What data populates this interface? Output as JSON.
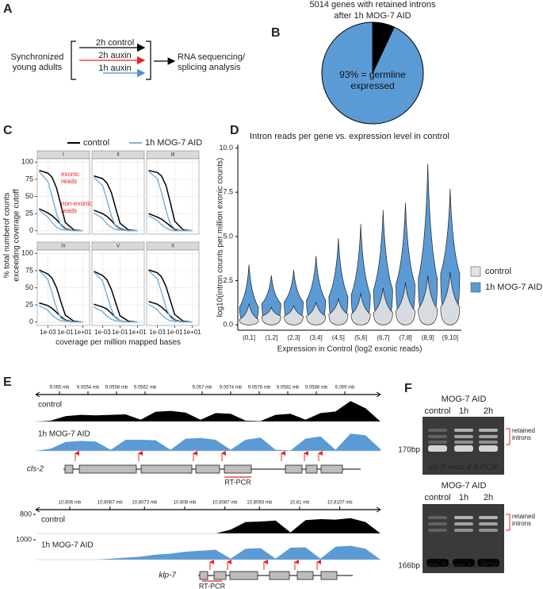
{
  "panel_labels": [
    "A",
    "B",
    "C",
    "D",
    "E",
    "F"
  ],
  "diagram": {
    "start": "Synchronized young adults",
    "arms": [
      {
        "label": "2h control",
        "color": "#000000"
      },
      {
        "label": "2h auxin",
        "color": "#e8251d"
      },
      {
        "label": "1h auxin",
        "color": "#4f8fd4"
      }
    ],
    "end": "RNA sequencing/ splicing analysis"
  },
  "chart_data": [
    {
      "type": "pie",
      "title": [
        "5014 genes with retained introns",
        "after 1h MOG-7 AID"
      ],
      "values": [
        93,
        7
      ],
      "value_labels": [
        "93% = germline expressed",
        null
      ],
      "colors": [
        "#5b9bd5",
        "#000000"
      ]
    },
    {
      "type": "facet_line",
      "legend": [
        {
          "name": "control",
          "color": "#000000"
        },
        {
          "name": "1h MOG-7 AID",
          "color": "#7fb2dc"
        }
      ],
      "ylabel": "% total numberof counts exceeding coverage cutoff",
      "xlabel": "coverage per million mapped bases",
      "x": [
        0.0001,
        0.001,
        0.003,
        0.01,
        0.03,
        0.1,
        1,
        10
      ],
      "xscale": "log",
      "xlim": [
        6e-05,
        60
      ],
      "xticks": [
        {
          "value": 0.001,
          "label": "1e-03"
        },
        {
          "value": 0.1,
          "label": "1e-01"
        },
        {
          "value": 10,
          "label": "1e+01"
        }
      ],
      "ylim": [
        -5,
        105
      ],
      "yticks": [
        0,
        25,
        50,
        75,
        100
      ],
      "grid": true,
      "annotations": [
        "exonic reads",
        "non-exonic reads"
      ],
      "facets": [
        {
          "label": "I",
          "series": [
            {
              "color": "#000000",
              "values": [
                88,
                84,
                78,
                62,
                38,
                12,
                1,
                0
              ]
            },
            {
              "color": "#000000",
              "values": [
                32,
                26,
                22,
                16,
                9,
                3,
                0,
                0
              ]
            },
            {
              "color": "#7fb2dc",
              "values": [
                86,
                72,
                50,
                25,
                8,
                2,
                0,
                0
              ]
            },
            {
              "color": "#7fb2dc",
              "values": [
                30,
                20,
                12,
                5,
                2,
                1,
                0,
                0
              ]
            }
          ]
        },
        {
          "label": "II",
          "series": [
            {
              "color": "#000000",
              "values": [
                80,
                76,
                70,
                56,
                34,
                11,
                1,
                0
              ]
            },
            {
              "color": "#000000",
              "values": [
                30,
                25,
                21,
                15,
                8,
                3,
                0,
                0
              ]
            },
            {
              "color": "#7fb2dc",
              "values": [
                78,
                66,
                46,
                22,
                7,
                2,
                0,
                0
              ]
            },
            {
              "color": "#7fb2dc",
              "values": [
                26,
                18,
                10,
                5,
                2,
                1,
                0,
                0
              ]
            }
          ]
        },
        {
          "label": "III",
          "series": [
            {
              "color": "#000000",
              "values": [
                88,
                85,
                80,
                66,
                42,
                14,
                1,
                0
              ]
            },
            {
              "color": "#000000",
              "values": [
                25,
                20,
                17,
                12,
                7,
                2,
                0,
                0
              ]
            },
            {
              "color": "#7fb2dc",
              "values": [
                87,
                76,
                56,
                30,
                10,
                3,
                0,
                0
              ]
            },
            {
              "color": "#7fb2dc",
              "values": [
                22,
                15,
                9,
                4,
                1,
                0,
                0,
                0
              ]
            }
          ]
        },
        {
          "label": "IV",
          "series": [
            {
              "color": "#000000",
              "values": [
                76,
                70,
                64,
                50,
                30,
                10,
                1,
                0
              ]
            },
            {
              "color": "#000000",
              "values": [
                28,
                24,
                20,
                14,
                8,
                3,
                0,
                0
              ]
            },
            {
              "color": "#7fb2dc",
              "values": [
                75,
                62,
                42,
                20,
                6,
                2,
                0,
                0
              ]
            },
            {
              "color": "#7fb2dc",
              "values": [
                24,
                17,
                10,
                5,
                2,
                1,
                0,
                0
              ]
            }
          ]
        },
        {
          "label": "V",
          "series": [
            {
              "color": "#000000",
              "values": [
                74,
                68,
                62,
                48,
                29,
                9,
                1,
                0
              ]
            },
            {
              "color": "#000000",
              "values": [
                26,
                22,
                19,
                13,
                7,
                2,
                0,
                0
              ]
            },
            {
              "color": "#7fb2dc",
              "values": [
                73,
                60,
                40,
                19,
                6,
                2,
                0,
                0
              ]
            },
            {
              "color": "#7fb2dc",
              "values": [
                22,
                15,
                9,
                4,
                2,
                1,
                0,
                0
              ]
            }
          ]
        },
        {
          "label": "X",
          "series": [
            {
              "color": "#000000",
              "values": [
                76,
                72,
                66,
                52,
                32,
                11,
                1,
                0
              ]
            },
            {
              "color": "#000000",
              "values": [
                30,
                26,
                22,
                16,
                9,
                3,
                0,
                0
              ]
            },
            {
              "color": "#7fb2dc",
              "values": [
                75,
                63,
                44,
                21,
                7,
                2,
                0,
                0
              ]
            },
            {
              "color": "#7fb2dc",
              "values": [
                26,
                18,
                11,
                5,
                2,
                1,
                0,
                0
              ]
            }
          ]
        }
      ]
    },
    {
      "type": "violin",
      "title": "Intron reads per gene vs. expression level in control",
      "xlabel": "Expression in Control (log2 exonic reads)",
      "ylabel": "log10(intron counts per million exonic counts)",
      "categories": [
        "(0,1]",
        "(1,2]",
        "(2,3]",
        "(3,4]",
        "(4,5]",
        "(5,6]",
        "(6,7]",
        "(7,8]",
        "(8,9]",
        "(9,10]"
      ],
      "ylim": [
        -0.3,
        10.2
      ],
      "yticks": [
        {
          "value": 0,
          "label": "0.0"
        },
        2.5,
        {
          "value": 5,
          "label": "5.0"
        },
        7.5,
        {
          "value": 10,
          "label": "10.0"
        }
      ],
      "series": [
        {
          "name": "control",
          "color": "#e3e3e3",
          "max": [
            1.2,
            1.0,
            1.1,
            1.3,
            1.5,
            1.8,
            2.1,
            2.4,
            2.8,
            3.0
          ],
          "mode": [
            0.3,
            0.5,
            0.5,
            0.5,
            0.6,
            0.6,
            0.7,
            0.8,
            0.9,
            1.0
          ]
        },
        {
          "name": "1h MOG-7 AID",
          "color": "#5b9bd5",
          "max": [
            3.4,
            2.8,
            3.1,
            3.9,
            4.9,
            5.7,
            6.5,
            6.9,
            9.1,
            7.7
          ],
          "mode": [
            1.0,
            1.2,
            1.3,
            1.4,
            1.6,
            1.7,
            2.0,
            2.3,
            2.6,
            2.9
          ]
        }
      ]
    }
  ],
  "genome_tracks": [
    {
      "gene": "cls-2",
      "rt_pcr": "RT-PCR",
      "xlim": [
        9.054667,
        9.0595
      ],
      "ticks": [
        {
          "value": 9.055,
          "label": "9.055 mb"
        },
        {
          "value": 9.0554,
          "label": "9.0554 mb"
        },
        {
          "value": 9.0558,
          "label": "9.0558 mb"
        },
        {
          "value": 9.0562,
          "label": "9.0562 mb"
        },
        {
          "value": 9.057,
          "label": "9.057 mb"
        },
        {
          "value": 9.0574,
          "label": "9.0574 mb"
        },
        {
          "value": 9.0578,
          "label": "9.0578 mb"
        },
        {
          "value": 9.0582,
          "label": "9.0582 mb"
        },
        {
          "value": 9.0586,
          "label": "9.0586 mb"
        },
        {
          "value": 9.059,
          "label": "9.059 mb"
        }
      ],
      "tracks": [
        {
          "label": "control",
          "color": "#000000",
          "ylim": [
            0,
            100
          ],
          "values": [
            0,
            4,
            24,
            30,
            28,
            30,
            32,
            8,
            44,
            48,
            40,
            8,
            38,
            35,
            4,
            2,
            30,
            35,
            8,
            38,
            45,
            92,
            60,
            0
          ]
        },
        {
          "label": "1h MOG-7 AID",
          "color": "#5b9bd5",
          "ylim": [
            0,
            100
          ],
          "values": [
            0,
            10,
            40,
            45,
            42,
            5,
            50,
            50,
            48,
            5,
            55,
            58,
            50,
            5,
            50,
            60,
            5,
            2,
            55,
            65,
            5,
            78,
            70,
            8
          ]
        }
      ]
    },
    {
      "gene": "klp-7",
      "rt_pcr": "RT-PCR",
      "xlim": [
        10.805407,
        10.811407
      ],
      "ticks": [
        {
          "value": 10.806,
          "label": "10.806 mb"
        },
        {
          "value": 10.8067,
          "label": "10.8067 mb"
        },
        {
          "value": 10.8073,
          "label": "10.8073 mb"
        },
        {
          "value": 10.808,
          "label": "10.808 mb"
        },
        {
          "value": 10.8087,
          "label": "10.8087 mb"
        },
        {
          "value": 10.8093,
          "label": "10.8093 mb"
        },
        {
          "value": 10.81,
          "label": "10.81 mb"
        },
        {
          "value": 10.8107,
          "label": "10.8107 mb"
        }
      ],
      "tracks": [
        {
          "label": "control",
          "color": "#000000",
          "ylim": [
            0,
            800
          ],
          "yticks": [
            800
          ],
          "values": [
            0,
            0,
            0,
            0,
            0,
            0,
            0,
            0,
            0,
            0,
            0,
            0,
            0,
            160,
            480,
            500,
            540,
            40,
            560,
            600,
            580,
            640,
            480,
            0
          ]
        },
        {
          "label": "1h MOG-7 AID",
          "color": "#5b9bd5",
          "ylim": [
            0,
            1000
          ],
          "yticks": [
            1000
          ],
          "values": [
            0,
            0,
            0,
            0,
            0,
            50,
            100,
            150,
            250,
            300,
            400,
            450,
            500,
            50,
            550,
            580,
            50,
            600,
            620,
            50,
            650,
            700,
            550,
            0
          ]
        }
      ]
    }
  ],
  "gels": [
    {
      "title": "MOG-7 AID",
      "lanes": [
        "control",
        "1h",
        "2h"
      ],
      "annotation": "retained introns",
      "marker": "170bp",
      "caption": "cls-2 exon 4-5 PCR"
    },
    {
      "title": "MOG-7 AID",
      "lanes": [
        "control",
        "1h",
        "2h"
      ],
      "annotation": "retained introns",
      "marker": "166bp",
      "caption": "klp-7 exon 1-2 PCR"
    }
  ]
}
